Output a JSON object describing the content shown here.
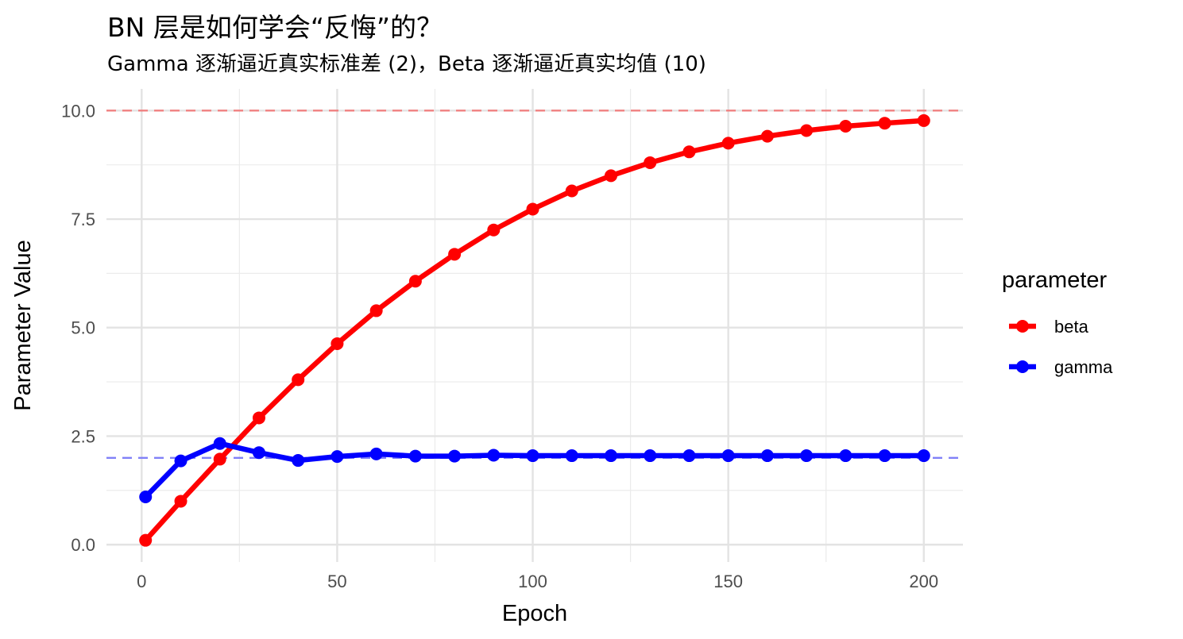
{
  "title": "BN 层是如何学会“反悔”的？",
  "subtitle": "Gamma 逐渐逼近真实标准差 (2)，Beta 逐渐逼近真实均值 (10)",
  "chart_data": {
    "type": "line",
    "xlabel": "Epoch",
    "ylabel": "Parameter Value",
    "xlim": [
      -9,
      210
    ],
    "ylim": [
      -0.4,
      10.5
    ],
    "x_ticks": [
      0,
      50,
      100,
      150,
      200
    ],
    "y_ticks": [
      0.0,
      2.5,
      5.0,
      7.5,
      10.0
    ],
    "y_tick_labels": [
      "0.0",
      "2.5",
      "5.0",
      "7.5",
      "10.0"
    ],
    "grid": true,
    "legend": {
      "title": "parameter",
      "position": "right"
    },
    "x": [
      1,
      10,
      20,
      30,
      40,
      50,
      60,
      70,
      80,
      90,
      100,
      110,
      120,
      130,
      140,
      150,
      160,
      170,
      180,
      190,
      200
    ],
    "series": [
      {
        "name": "beta",
        "color": "#ff0000",
        "values": [
          0.1,
          1.0,
          1.97,
          2.92,
          3.8,
          4.63,
          5.39,
          6.07,
          6.69,
          7.25,
          7.73,
          8.15,
          8.5,
          8.8,
          9.05,
          9.25,
          9.41,
          9.54,
          9.64,
          9.71,
          9.77
        ]
      },
      {
        "name": "gamma",
        "color": "#0000ff",
        "values": [
          1.1,
          1.93,
          2.33,
          2.12,
          1.94,
          2.03,
          2.09,
          2.04,
          2.04,
          2.06,
          2.05,
          2.05,
          2.05,
          2.05,
          2.05,
          2.05,
          2.05,
          2.05,
          2.05,
          2.05,
          2.05
        ]
      }
    ],
    "reference_lines": [
      {
        "y": 10,
        "color": "#f08080",
        "style": "dashed"
      },
      {
        "y": 2,
        "color": "#8080f8",
        "style": "dashed"
      }
    ]
  }
}
